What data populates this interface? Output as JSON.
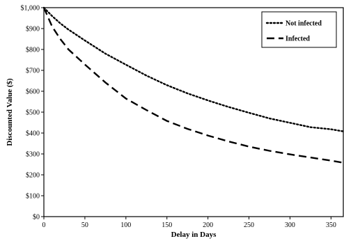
{
  "chart_data": {
    "type": "line",
    "title": "",
    "xlabel": "Delay in Days",
    "ylabel": "Discounted Value ($)",
    "xlim": [
      0,
      365
    ],
    "ylim": [
      0,
      1000
    ],
    "x_ticks": [
      0,
      50,
      100,
      150,
      200,
      250,
      300,
      350
    ],
    "x_tick_labels": [
      "0",
      "50",
      "100",
      "150",
      "200",
      "250",
      "300",
      "350"
    ],
    "y_ticks": [
      0,
      100,
      200,
      300,
      400,
      500,
      600,
      700,
      800,
      900,
      1000
    ],
    "y_tick_labels": [
      "$0",
      "$100",
      "$200",
      "$300",
      "$400",
      "$500",
      "$600",
      "$700",
      "$800",
      "$900",
      "$1,000"
    ],
    "grid": false,
    "legend_position": "top-right",
    "x": [
      0,
      10,
      20,
      30,
      50,
      75,
      100,
      125,
      150,
      175,
      200,
      225,
      250,
      275,
      300,
      325,
      350,
      365
    ],
    "series": [
      {
        "name": "Not infected",
        "style": "dotted",
        "color": "#000000",
        "values": [
          1000,
          960,
          925,
          895,
          843,
          780,
          727,
          675,
          629,
          590,
          556,
          525,
          497,
          470,
          449,
          428,
          418,
          408
        ]
      },
      {
        "name": "Infected",
        "style": "dashed",
        "color": "#000000",
        "values": [
          1000,
          910,
          850,
          800,
          728,
          642,
          565,
          510,
          458,
          420,
          388,
          360,
          335,
          315,
          298,
          283,
          268,
          258
        ]
      }
    ]
  }
}
